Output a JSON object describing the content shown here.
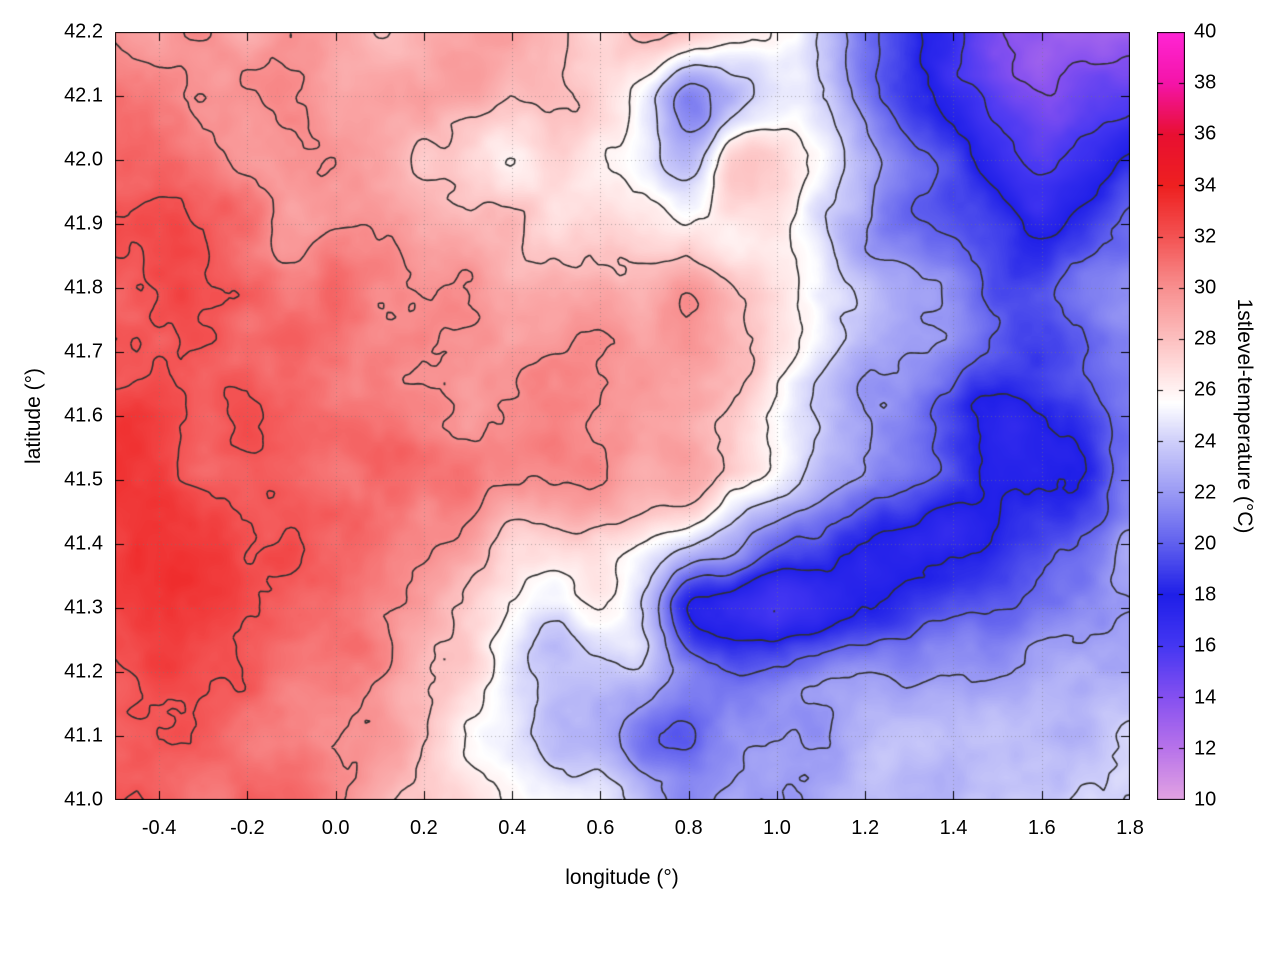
{
  "chart_data": {
    "type": "heatmap",
    "title": "",
    "xlabel": "longitude (°)",
    "ylabel": "latitude (°)",
    "x_range": [
      -0.5,
      1.8
    ],
    "y_range": [
      41.0,
      42.2
    ],
    "grid_on": true,
    "x_ticks": {
      "values": [
        -0.4,
        -0.2,
        0.0,
        0.2,
        0.4,
        0.6,
        0.8,
        1.0,
        1.2,
        1.4,
        1.6,
        1.8
      ],
      "labels": [
        "-0.4",
        "-0.2",
        "0.0",
        "0.2",
        "0.4",
        "0.6",
        "0.8",
        "1.0",
        "1.2",
        "1.4",
        "1.6",
        "1.8"
      ]
    },
    "y_ticks": {
      "values": [
        41.0,
        41.1,
        41.2,
        41.3,
        41.4,
        41.5,
        41.6,
        41.7,
        41.8,
        41.9,
        42.0,
        42.1,
        42.2
      ],
      "labels": [
        "41.0",
        "41.1",
        "41.2",
        "41.3",
        "41.4",
        "41.5",
        "41.6",
        "41.7",
        "41.8",
        "41.9",
        "42.0",
        "42.1",
        "42.2"
      ]
    },
    "colorbar": {
      "label": "1stlevel-temperature (°C)",
      "range": [
        10,
        40
      ],
      "tick_values": [
        10,
        12,
        14,
        16,
        18,
        20,
        22,
        24,
        26,
        28,
        30,
        32,
        34,
        36,
        38,
        40
      ],
      "tick_labels": [
        "10",
        "12",
        "14",
        "16",
        "18",
        "20",
        "22",
        "24",
        "26",
        "28",
        "30",
        "32",
        "34",
        "36",
        "38",
        "40"
      ]
    },
    "palette": [
      [
        10,
        "#e2a3e2"
      ],
      [
        12,
        "#b873ea"
      ],
      [
        14,
        "#8550f0"
      ],
      [
        16,
        "#4537f2"
      ],
      [
        18,
        "#1f1fe8"
      ],
      [
        20,
        "#6060ee"
      ],
      [
        22,
        "#9a9af4"
      ],
      [
        24,
        "#cfcffa"
      ],
      [
        25.5,
        "#ffffff"
      ],
      [
        27,
        "#ffdada"
      ],
      [
        28.5,
        "#fbb3b3"
      ],
      [
        30,
        "#f89090"
      ],
      [
        32,
        "#f35353"
      ],
      [
        34,
        "#ee2020"
      ],
      [
        36,
        "#e80f31"
      ],
      [
        38,
        "#f414a8"
      ],
      [
        40,
        "#ff25d5"
      ]
    ],
    "contour_levels": [
      14,
      16,
      18,
      20,
      22,
      24,
      26,
      28,
      30,
      32
    ],
    "contour_color": "#303030",
    "noise_amplitude": 1.0,
    "grid": {
      "lon_min": -0.5,
      "lon_max": 1.8,
      "lat_min": 41.0,
      "lat_max": 42.2,
      "order": "north-to-south",
      "values": [
        [
          30,
          30,
          30,
          29,
          29,
          29,
          28,
          28,
          29,
          29,
          28,
          27,
          29,
          28,
          27,
          26,
          24,
          21,
          19,
          16,
          14,
          13,
          13,
          13
        ],
        [
          31,
          31,
          30,
          30,
          30,
          29,
          29,
          29,
          29,
          28,
          28,
          27,
          25,
          21,
          23,
          25,
          24,
          21,
          19,
          17,
          15,
          14,
          15,
          15
        ],
        [
          31,
          31,
          31,
          30,
          30,
          30,
          29,
          28,
          27,
          26,
          27,
          26,
          25,
          23,
          27,
          27,
          25,
          23,
          21,
          19,
          17,
          16,
          17,
          18
        ],
        [
          32,
          32,
          31,
          31,
          30,
          30,
          30,
          29,
          28,
          28,
          27,
          27,
          26,
          26,
          26,
          26,
          24,
          22,
          21,
          20,
          19,
          18,
          19,
          20
        ],
        [
          32,
          32,
          32,
          31,
          31,
          31,
          30,
          30,
          30,
          29,
          29,
          29,
          29,
          30,
          28,
          27,
          25,
          23,
          22,
          21,
          19,
          19,
          21,
          22
        ],
        [
          32,
          32,
          32,
          31,
          31,
          31,
          31,
          30,
          30,
          30,
          30,
          30,
          29,
          30,
          29,
          27,
          25,
          23,
          22,
          21,
          20,
          19,
          20,
          21
        ],
        [
          33,
          33,
          32,
          32,
          31,
          31,
          31,
          31,
          30,
          30,
          30,
          30,
          29,
          29,
          28,
          26,
          24,
          22,
          21,
          19,
          18,
          18,
          19,
          21
        ],
        [
          33,
          33,
          32,
          32,
          32,
          31,
          31,
          31,
          31,
          30,
          30,
          30,
          29,
          29,
          27,
          25,
          23,
          21,
          20,
          19,
          18,
          18,
          19,
          21
        ],
        [
          33,
          33,
          33,
          32,
          32,
          31,
          31,
          30,
          29,
          27,
          27,
          27,
          26,
          24,
          22,
          20,
          19,
          18,
          17,
          17,
          18,
          19,
          20,
          22
        ],
        [
          33,
          33,
          33,
          32,
          32,
          31,
          30,
          29,
          27,
          26,
          25,
          26,
          24,
          18,
          17,
          16,
          17,
          18,
          19,
          20,
          20,
          21,
          21,
          22
        ],
        [
          32,
          33,
          32,
          32,
          31,
          31,
          30,
          28,
          27,
          25,
          24,
          24,
          23,
          21,
          20,
          20,
          21,
          22,
          22,
          22,
          22,
          23,
          23,
          23
        ],
        [
          32,
          32,
          32,
          31,
          31,
          30,
          29,
          28,
          26,
          25,
          23,
          23,
          21,
          20,
          21,
          22,
          22,
          23,
          23,
          23,
          23,
          23,
          23,
          24
        ],
        [
          32,
          32,
          31,
          31,
          31,
          30,
          29,
          28,
          27,
          26,
          25,
          25,
          23,
          21,
          22,
          22,
          23,
          23,
          23,
          23,
          23,
          23,
          24,
          24
        ]
      ]
    }
  }
}
